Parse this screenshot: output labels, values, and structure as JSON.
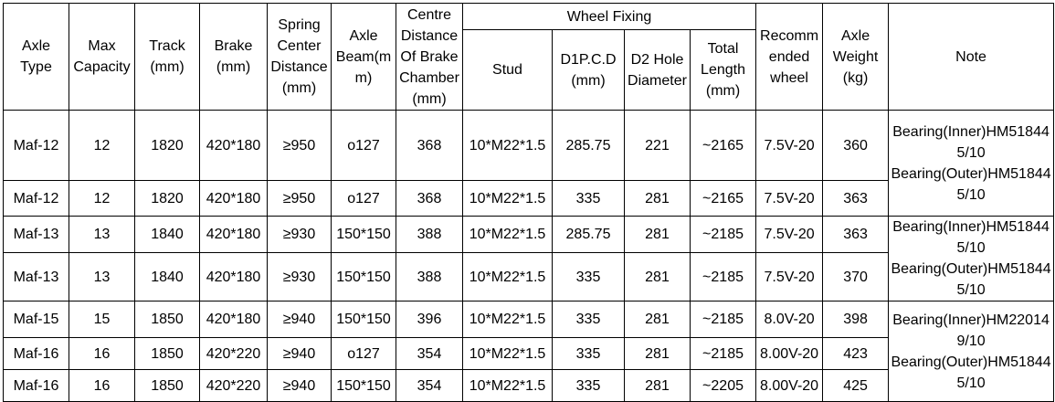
{
  "table": {
    "headers": [
      "Axle Type",
      "Max Capacity",
      "Track (mm)",
      "Brake (mm)",
      "Spring Center Distance (mm)",
      "Axle Beam(mm)",
      "Centre Distance Of Brake Chamber(mm)"
    ],
    "group": "Wheel Fixing",
    "group_headers": [
      "Stud",
      "D1P.C.D (mm)",
      "D2 Hole Diameter",
      "Total Length (mm)"
    ],
    "tail_headers": [
      "Recommended wheel",
      "Axle Weight (kg)",
      "Note"
    ],
    "rows": [
      [
        "Maf-12",
        "12",
        "1820",
        "420*180",
        "≥950",
        "o127",
        "368",
        "10*M22*1.5",
        "285.75",
        "221",
        "~2165",
        "7.5V-20",
        "360"
      ],
      [
        "Maf-12",
        "12",
        "1820",
        "420*180",
        "≥950",
        "o127",
        "368",
        "10*M22*1.5",
        "335",
        "281",
        "~2165",
        "7.5V-20",
        "363"
      ],
      [
        "Maf-13",
        "13",
        "1840",
        "420*180",
        "≥930",
        "150*150",
        "388",
        "10*M22*1.5",
        "285.75",
        "281",
        "~2185",
        "7.5V-20",
        "363"
      ],
      [
        "Maf-13",
        "13",
        "1840",
        "420*180",
        "≥930",
        "150*150",
        "388",
        "10*M22*1.5",
        "335",
        "281",
        "~2185",
        "7.5V-20",
        "370"
      ],
      [
        "Maf-15",
        "15",
        "1850",
        "420*180",
        "≥940",
        "150*150",
        "396",
        "10*M22*1.5",
        "335",
        "281",
        "~2185",
        "8.0V-20",
        "398"
      ],
      [
        "Maf-16",
        "16",
        "1850",
        "420*220",
        "≥940",
        "o127",
        "354",
        "10*M22*1.5",
        "335",
        "281",
        "~2185",
        "8.00V-20",
        "423"
      ],
      [
        "Maf-16",
        "16",
        "1850",
        "420*220",
        "≥940",
        "150*150",
        "354",
        "10*M22*1.5",
        "335",
        "281",
        "~2205",
        "8.00V-20",
        "425"
      ]
    ],
    "notes": [
      [
        "Bearing(Inner)HM518445/10",
        "Bearing(Outer)HM518445/10"
      ],
      [
        "Bearing(Inner)HM518445/10",
        "Bearing(Outer)HM518445/10"
      ],
      [
        "Bearing(Inner)HM220149/10",
        "Bearing(Outer)HM518445/10"
      ]
    ]
  }
}
